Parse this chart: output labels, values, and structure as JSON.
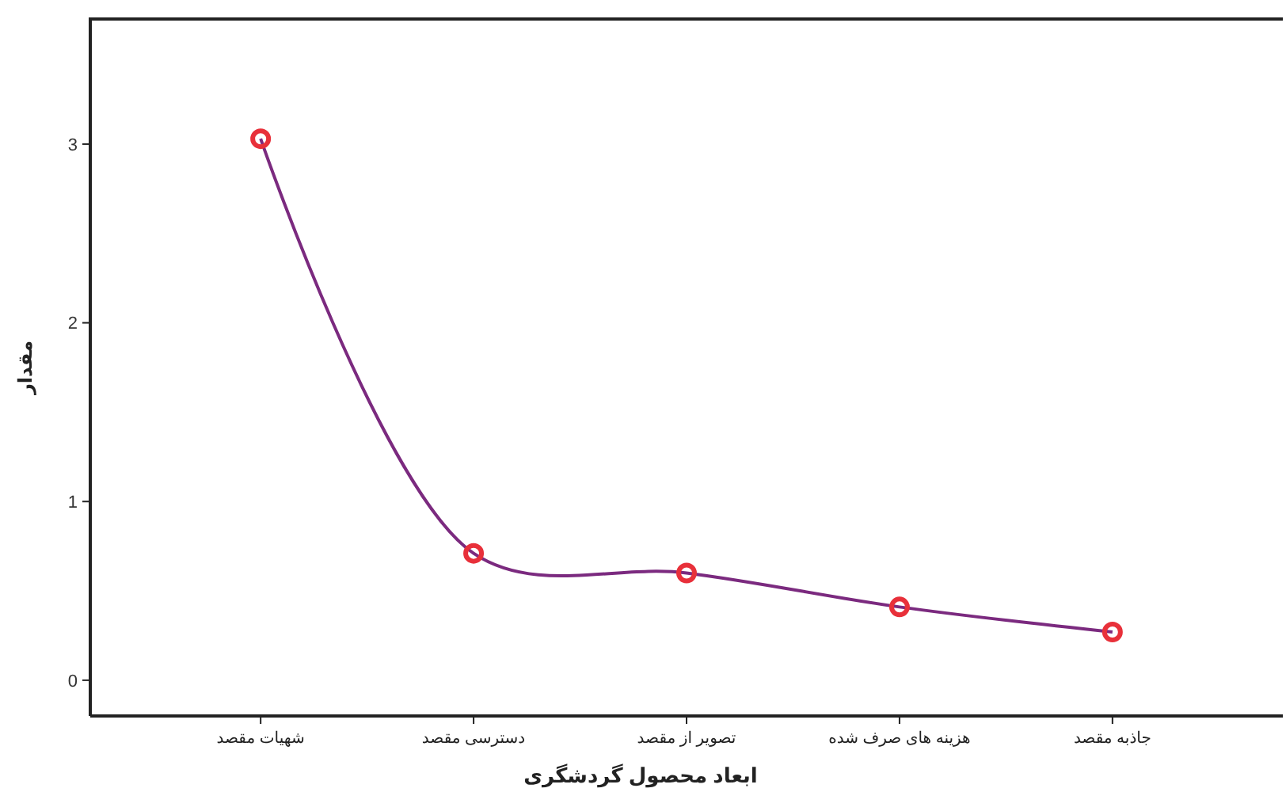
{
  "chart_data": {
    "type": "line",
    "xlabel": "ابعاد محصول گردشگری",
    "ylabel": "مقدار",
    "categories": [
      "شهیات مقصد",
      "دسترسی مقصد",
      "تصویر از مقصد",
      "هزینه های صرف شده",
      "جاذبه مقصد"
    ],
    "series": [
      {
        "color": "#7b2a7f",
        "values": [
          3.03,
          0.71,
          0.6,
          0.41,
          0.27
        ]
      }
    ],
    "ylim": [
      -0.2,
      3.7
    ],
    "yticks": [
      0,
      1,
      2,
      3
    ],
    "marker": "circle",
    "grid": false
  }
}
